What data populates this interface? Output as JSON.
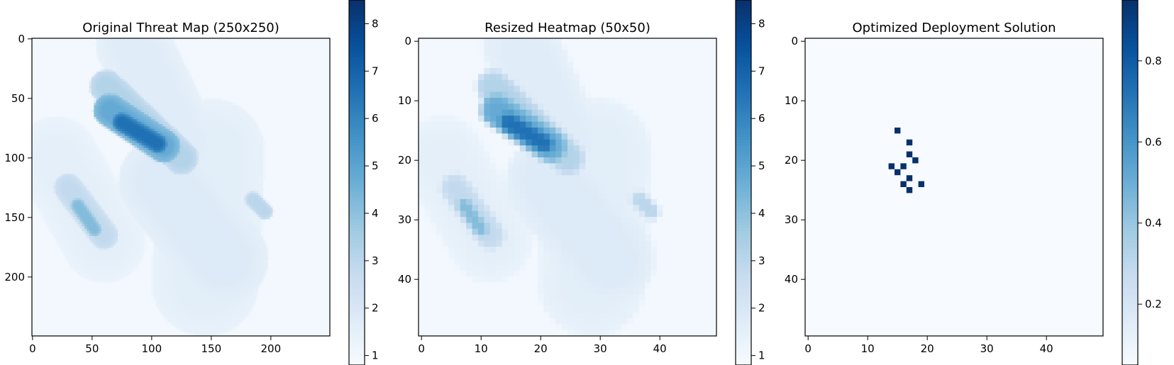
{
  "figure": {
    "background": "#ffffff",
    "colormap": "Blues",
    "colormap_stops": [
      "#f7fbff",
      "#deebf7",
      "#c6dbef",
      "#9ecae1",
      "#6baed6",
      "#4292c6",
      "#2171b5",
      "#08519c",
      "#08306b"
    ]
  },
  "chart_data": [
    {
      "type": "heatmap",
      "title": "Original Threat Map (250x250)",
      "xlabel": "",
      "ylabel": "",
      "grid_size": [
        250,
        250
      ],
      "xlim": [
        -0.5,
        249.5
      ],
      "ylim": [
        249.5,
        -0.5
      ],
      "x_ticks": [
        0,
        50,
        100,
        150,
        200
      ],
      "y_ticks": [
        0,
        50,
        100,
        150,
        200
      ],
      "colorbar": {
        "range": [
          0.8,
          8.5
        ],
        "ticks": [
          1,
          2,
          3,
          4,
          5,
          6,
          7,
          8
        ]
      },
      "regions": [
        {
          "shape": "capsule",
          "from": [
            150,
            95
          ],
          "to": [
            145,
            205
          ],
          "radius": 45,
          "value": 1.6
        },
        {
          "shape": "capsule",
          "from": [
            110,
            120
          ],
          "to": [
            160,
            185
          ],
          "radius": 38,
          "value": 1.8
        },
        {
          "shape": "capsule",
          "from": [
            85,
            5
          ],
          "to": [
            125,
            90
          ],
          "radius": 32,
          "value": 1.7
        },
        {
          "shape": "capsule",
          "from": [
            20,
            100
          ],
          "to": [
            60,
            170
          ],
          "radius": 35,
          "value": 1.5
        },
        {
          "shape": "capsule",
          "from": [
            62,
            40
          ],
          "to": [
            125,
            100
          ],
          "radius": 14,
          "value": 3.2
        },
        {
          "shape": "capsule",
          "from": [
            65,
            60
          ],
          "to": [
            110,
            90
          ],
          "radius": 14,
          "value": 4.8
        },
        {
          "shape": "capsule",
          "from": [
            75,
            70
          ],
          "to": [
            105,
            88
          ],
          "radius": 8,
          "value": 6.6
        },
        {
          "shape": "capsule",
          "from": [
            30,
            125
          ],
          "to": [
            60,
            165
          ],
          "radius": 12,
          "value": 2.8
        },
        {
          "shape": "capsule",
          "from": [
            38,
            140
          ],
          "to": [
            52,
            160
          ],
          "radius": 6,
          "value": 4.2
        },
        {
          "shape": "capsule",
          "from": [
            185,
            135
          ],
          "to": [
            195,
            145
          ],
          "radius": 7,
          "value": 3.0
        }
      ]
    },
    {
      "type": "heatmap",
      "title": "Resized Heatmap (50x50)",
      "xlabel": "",
      "ylabel": "",
      "grid_size": [
        50,
        50
      ],
      "xlim": [
        -0.5,
        49.5
      ],
      "ylim": [
        49.5,
        -0.5
      ],
      "x_ticks": [
        0,
        10,
        20,
        30,
        40
      ],
      "y_ticks": [
        0,
        10,
        20,
        30,
        40
      ],
      "colorbar": {
        "range": [
          0.8,
          8.5
        ],
        "ticks": [
          1,
          2,
          3,
          4,
          5,
          6,
          7,
          8
        ]
      },
      "source": "block-average of Original Threat Map (factor 5)"
    },
    {
      "type": "heatmap",
      "title": "Optimized Deployment Solution",
      "xlabel": "",
      "ylabel": "",
      "grid_size": [
        50,
        50
      ],
      "xlim": [
        -0.5,
        49.5
      ],
      "ylim": [
        49.5,
        -0.5
      ],
      "x_ticks": [
        0,
        10,
        20,
        30,
        40
      ],
      "y_ticks": [
        0,
        10,
        20,
        30,
        40
      ],
      "colorbar": {
        "range": [
          0.05,
          0.95
        ],
        "ticks": [
          0.2,
          0.4,
          0.6,
          0.8
        ]
      },
      "background_value": 0,
      "cells": [
        {
          "x": 15,
          "y": 15,
          "value": 1
        },
        {
          "x": 17,
          "y": 17,
          "value": 1
        },
        {
          "x": 17,
          "y": 19,
          "value": 1
        },
        {
          "x": 18,
          "y": 20,
          "value": 1
        },
        {
          "x": 14,
          "y": 21,
          "value": 1
        },
        {
          "x": 16,
          "y": 21,
          "value": 1
        },
        {
          "x": 15,
          "y": 22,
          "value": 1
        },
        {
          "x": 17,
          "y": 23,
          "value": 1
        },
        {
          "x": 16,
          "y": 24,
          "value": 1
        },
        {
          "x": 19,
          "y": 24,
          "value": 1
        },
        {
          "x": 17,
          "y": 25,
          "value": 1
        }
      ]
    }
  ]
}
